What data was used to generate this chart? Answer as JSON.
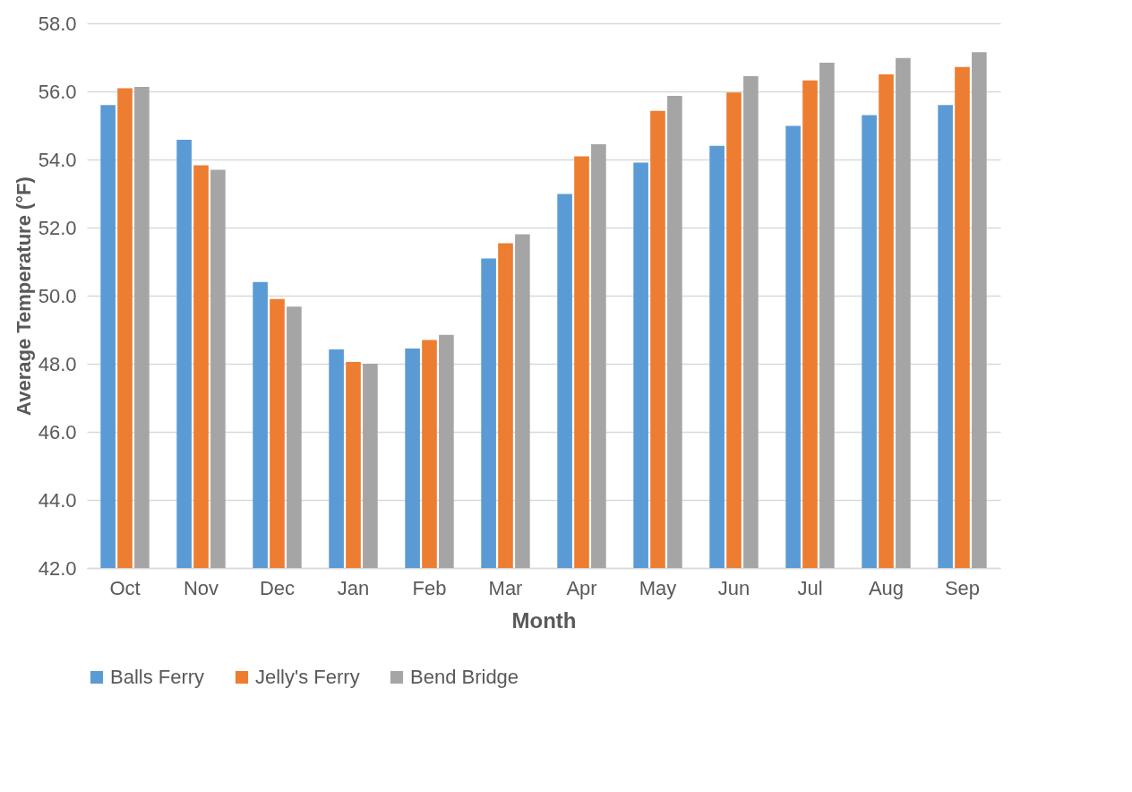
{
  "chart_data": {
    "type": "bar",
    "xlabel": "Month",
    "ylabel": "Average Temperature (°F)",
    "categories": [
      "Oct",
      "Nov",
      "Dec",
      "Jan",
      "Feb",
      "Mar",
      "Apr",
      "May",
      "Jun",
      "Jul",
      "Aug",
      "Sep"
    ],
    "series": [
      {
        "name": "Balls Ferry",
        "color": "#5b9bd5",
        "values": [
          55.6,
          54.58,
          50.4,
          48.42,
          48.45,
          51.09,
          52.99,
          53.91,
          54.4,
          54.99,
          55.3,
          55.6
        ]
      },
      {
        "name": "Jelly's Ferry",
        "color": "#ed7d31",
        "values": [
          56.09,
          53.83,
          49.9,
          48.05,
          48.7,
          51.54,
          54.09,
          55.43,
          55.97,
          56.32,
          56.5,
          56.72
        ]
      },
      {
        "name": "Bend Bridge",
        "color": "#a5a5a5",
        "values": [
          56.13,
          53.7,
          49.68,
          48.0,
          48.85,
          51.8,
          54.45,
          55.87,
          56.45,
          56.84,
          56.98,
          57.15
        ]
      }
    ],
    "ylim": [
      42,
      58
    ],
    "yticks": [
      {
        "value": 42,
        "label": "42.0"
      },
      {
        "value": 44,
        "label": "44.0"
      },
      {
        "value": 46,
        "label": "46.0"
      },
      {
        "value": 48,
        "label": "48.0"
      },
      {
        "value": 50,
        "label": "50.0"
      },
      {
        "value": 52,
        "label": "52.0"
      },
      {
        "value": 54,
        "label": "54.0"
      },
      {
        "value": 56,
        "label": "56.0"
      },
      {
        "value": 58,
        "label": "58.0"
      }
    ],
    "grid": "y",
    "legend": "bottom"
  }
}
